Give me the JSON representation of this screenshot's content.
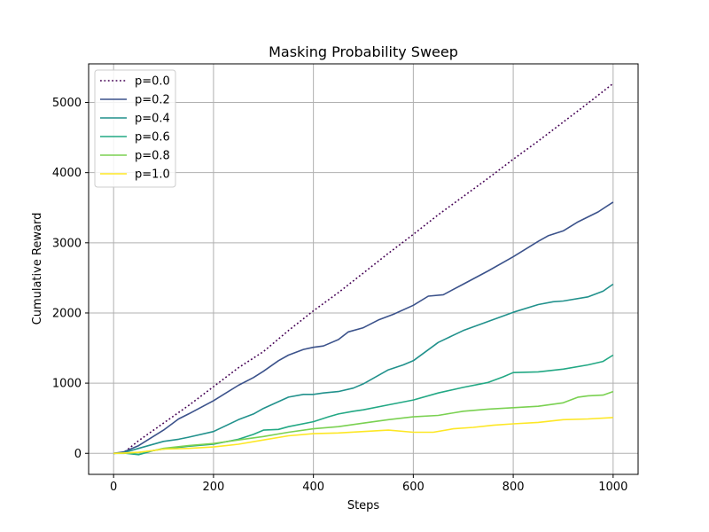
{
  "chart_data": {
    "type": "line",
    "title": "Masking Probability Sweep",
    "xlabel": "Steps",
    "ylabel": "Cumulative Reward",
    "xlim": [
      -50,
      1050
    ],
    "ylim": [
      -300,
      5550
    ],
    "xticks": [
      0,
      200,
      400,
      600,
      800,
      1000
    ],
    "yticks": [
      0,
      1000,
      2000,
      3000,
      4000,
      5000
    ],
    "grid": true,
    "legend_position": "upper-left",
    "series": [
      {
        "name": "p=0.0",
        "color": "#440154",
        "style": "dotted",
        "x": [
          0,
          20,
          50,
          100,
          150,
          200,
          250,
          300,
          350,
          400,
          450,
          500,
          550,
          600,
          650,
          700,
          750,
          800,
          850,
          900,
          950,
          1000
        ],
        "y": [
          0,
          10,
          180,
          430,
          680,
          950,
          1220,
          1450,
          1750,
          2030,
          2290,
          2570,
          2850,
          3120,
          3400,
          3660,
          3920,
          4190,
          4450,
          4720,
          4990,
          5270
        ]
      },
      {
        "name": "p=0.2",
        "color": "#3b528b",
        "style": "solid",
        "x": [
          0,
          20,
          50,
          100,
          130,
          150,
          200,
          250,
          280,
          300,
          330,
          350,
          380,
          400,
          420,
          450,
          470,
          500,
          530,
          560,
          600,
          630,
          660,
          700,
          750,
          800,
          850,
          870,
          900,
          930,
          970,
          1000
        ],
        "y": [
          0,
          20,
          110,
          330,
          490,
          560,
          750,
          970,
          1080,
          1170,
          1320,
          1400,
          1480,
          1510,
          1530,
          1620,
          1730,
          1790,
          1900,
          1980,
          2110,
          2240,
          2260,
          2410,
          2600,
          2800,
          3020,
          3100,
          3170,
          3300,
          3440,
          3580
        ]
      },
      {
        "name": "p=0.4",
        "color": "#21918c",
        "style": "solid",
        "x": [
          0,
          20,
          50,
          100,
          130,
          150,
          200,
          250,
          280,
          300,
          350,
          380,
          400,
          420,
          450,
          480,
          500,
          550,
          580,
          600,
          650,
          700,
          750,
          800,
          850,
          880,
          900,
          950,
          980,
          1000
        ],
        "y": [
          0,
          10,
          70,
          170,
          200,
          230,
          310,
          480,
          560,
          640,
          800,
          840,
          840,
          860,
          880,
          930,
          990,
          1190,
          1260,
          1320,
          1580,
          1750,
          1880,
          2010,
          2120,
          2160,
          2170,
          2230,
          2310,
          2410
        ]
      },
      {
        "name": "p=0.6",
        "color": "#22a884",
        "style": "solid",
        "x": [
          0,
          20,
          50,
          80,
          100,
          150,
          200,
          250,
          280,
          300,
          330,
          350,
          400,
          430,
          450,
          480,
          500,
          550,
          600,
          650,
          700,
          750,
          780,
          800,
          850,
          900,
          950,
          980,
          1000
        ],
        "y": [
          0,
          5,
          -20,
          40,
          60,
          100,
          130,
          200,
          270,
          330,
          340,
          380,
          450,
          520,
          560,
          600,
          620,
          690,
          760,
          860,
          940,
          1010,
          1090,
          1150,
          1160,
          1200,
          1260,
          1310,
          1400
        ]
      },
      {
        "name": "p=0.8",
        "color": "#7ad151",
        "style": "solid",
        "x": [
          0,
          20,
          50,
          80,
          100,
          150,
          200,
          250,
          300,
          350,
          400,
          450,
          500,
          550,
          600,
          650,
          700,
          750,
          800,
          850,
          900,
          930,
          950,
          980,
          1000
        ],
        "y": [
          0,
          0,
          10,
          40,
          70,
          110,
          140,
          190,
          240,
          300,
          350,
          380,
          430,
          480,
          520,
          540,
          600,
          630,
          650,
          670,
          720,
          800,
          820,
          830,
          880
        ]
      },
      {
        "name": "p=1.0",
        "color": "#fde725",
        "style": "solid",
        "x": [
          0,
          20,
          50,
          80,
          100,
          150,
          200,
          250,
          300,
          350,
          400,
          450,
          500,
          550,
          600,
          640,
          680,
          720,
          760,
          800,
          850,
          900,
          950,
          1000
        ],
        "y": [
          0,
          5,
          15,
          40,
          60,
          70,
          90,
          130,
          190,
          250,
          280,
          290,
          310,
          330,
          300,
          300,
          350,
          370,
          400,
          420,
          440,
          480,
          490,
          510
        ]
      }
    ]
  }
}
